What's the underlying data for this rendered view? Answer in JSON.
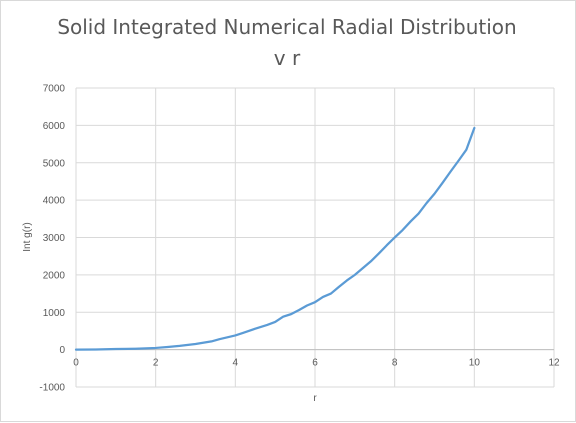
{
  "chart_data": {
    "type": "scatter",
    "title": "Solid Integrated Numerical Radial Distribution",
    "subtitle": "v r",
    "xlabel": "r",
    "ylabel": "Int g(r)",
    "xlim": [
      0,
      12
    ],
    "ylim": [
      -1000,
      7000
    ],
    "x_ticks": [
      "0",
      "2",
      "4",
      "6",
      "8",
      "10",
      "12"
    ],
    "y_ticks": [
      "-1000",
      "0",
      "1000",
      "2000",
      "3000",
      "4000",
      "5000",
      "6000",
      "7000"
    ],
    "grid": true,
    "legend": "none",
    "line_color": "#5b9bd5",
    "series": [
      {
        "x": [
          0,
          0.5,
          1.0,
          1.5,
          2.0,
          2.3,
          2.6,
          3.0,
          3.4,
          3.6,
          4.0,
          4.2,
          4.5,
          4.8,
          5.0,
          5.2,
          5.4,
          5.6,
          5.8,
          6.0,
          6.2,
          6.4,
          6.6,
          6.8,
          7.0,
          7.2,
          7.4,
          7.6,
          7.8,
          8.0,
          8.2,
          8.4,
          8.6,
          8.8,
          9.0,
          9.2,
          9.4,
          9.6,
          9.8,
          10.0
        ],
        "y": [
          0,
          5,
          15,
          25,
          45,
          70,
          100,
          150,
          220,
          280,
          380,
          450,
          560,
          660,
          740,
          880,
          950,
          1060,
          1180,
          1270,
          1410,
          1500,
          1680,
          1850,
          2000,
          2180,
          2360,
          2570,
          2790,
          3000,
          3200,
          3430,
          3640,
          3920,
          4170,
          4460,
          4760,
          5050,
          5350,
          5930
        ]
      }
    ]
  }
}
